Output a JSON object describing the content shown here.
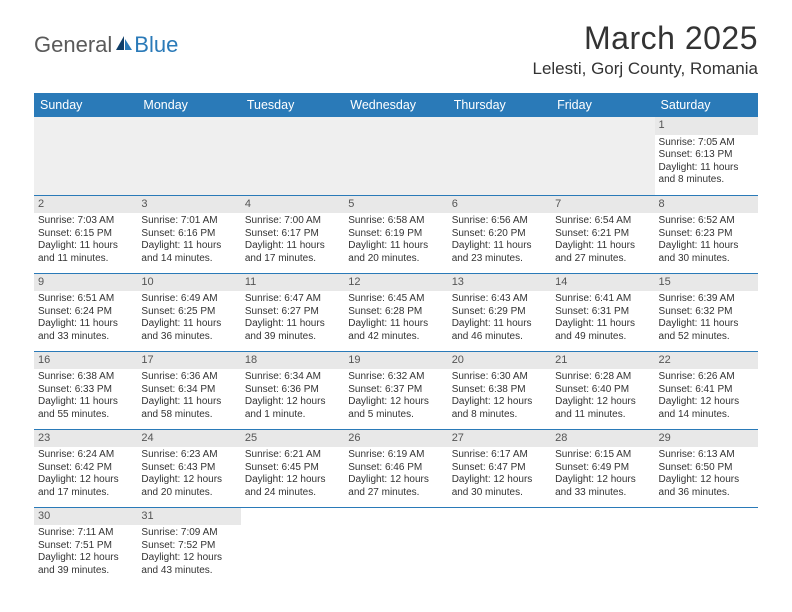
{
  "logo": {
    "general": "General",
    "blue": "Blue"
  },
  "title": "March 2025",
  "location": "Lelesti, Gorj County, Romania",
  "header_color": "#2a7ab8",
  "day_bg": "#e8e8e8",
  "weekdays": [
    "Sunday",
    "Monday",
    "Tuesday",
    "Wednesday",
    "Thursday",
    "Friday",
    "Saturday"
  ],
  "weeks": [
    [
      null,
      null,
      null,
      null,
      null,
      null,
      {
        "n": "1",
        "sr": "Sunrise: 7:05 AM",
        "ss": "Sunset: 6:13 PM",
        "dl": "Daylight: 11 hours and 8 minutes."
      }
    ],
    [
      {
        "n": "2",
        "sr": "Sunrise: 7:03 AM",
        "ss": "Sunset: 6:15 PM",
        "dl": "Daylight: 11 hours and 11 minutes."
      },
      {
        "n": "3",
        "sr": "Sunrise: 7:01 AM",
        "ss": "Sunset: 6:16 PM",
        "dl": "Daylight: 11 hours and 14 minutes."
      },
      {
        "n": "4",
        "sr": "Sunrise: 7:00 AM",
        "ss": "Sunset: 6:17 PM",
        "dl": "Daylight: 11 hours and 17 minutes."
      },
      {
        "n": "5",
        "sr": "Sunrise: 6:58 AM",
        "ss": "Sunset: 6:19 PM",
        "dl": "Daylight: 11 hours and 20 minutes."
      },
      {
        "n": "6",
        "sr": "Sunrise: 6:56 AM",
        "ss": "Sunset: 6:20 PM",
        "dl": "Daylight: 11 hours and 23 minutes."
      },
      {
        "n": "7",
        "sr": "Sunrise: 6:54 AM",
        "ss": "Sunset: 6:21 PM",
        "dl": "Daylight: 11 hours and 27 minutes."
      },
      {
        "n": "8",
        "sr": "Sunrise: 6:52 AM",
        "ss": "Sunset: 6:23 PM",
        "dl": "Daylight: 11 hours and 30 minutes."
      }
    ],
    [
      {
        "n": "9",
        "sr": "Sunrise: 6:51 AM",
        "ss": "Sunset: 6:24 PM",
        "dl": "Daylight: 11 hours and 33 minutes."
      },
      {
        "n": "10",
        "sr": "Sunrise: 6:49 AM",
        "ss": "Sunset: 6:25 PM",
        "dl": "Daylight: 11 hours and 36 minutes."
      },
      {
        "n": "11",
        "sr": "Sunrise: 6:47 AM",
        "ss": "Sunset: 6:27 PM",
        "dl": "Daylight: 11 hours and 39 minutes."
      },
      {
        "n": "12",
        "sr": "Sunrise: 6:45 AM",
        "ss": "Sunset: 6:28 PM",
        "dl": "Daylight: 11 hours and 42 minutes."
      },
      {
        "n": "13",
        "sr": "Sunrise: 6:43 AM",
        "ss": "Sunset: 6:29 PM",
        "dl": "Daylight: 11 hours and 46 minutes."
      },
      {
        "n": "14",
        "sr": "Sunrise: 6:41 AM",
        "ss": "Sunset: 6:31 PM",
        "dl": "Daylight: 11 hours and 49 minutes."
      },
      {
        "n": "15",
        "sr": "Sunrise: 6:39 AM",
        "ss": "Sunset: 6:32 PM",
        "dl": "Daylight: 11 hours and 52 minutes."
      }
    ],
    [
      {
        "n": "16",
        "sr": "Sunrise: 6:38 AM",
        "ss": "Sunset: 6:33 PM",
        "dl": "Daylight: 11 hours and 55 minutes."
      },
      {
        "n": "17",
        "sr": "Sunrise: 6:36 AM",
        "ss": "Sunset: 6:34 PM",
        "dl": "Daylight: 11 hours and 58 minutes."
      },
      {
        "n": "18",
        "sr": "Sunrise: 6:34 AM",
        "ss": "Sunset: 6:36 PM",
        "dl": "Daylight: 12 hours and 1 minute."
      },
      {
        "n": "19",
        "sr": "Sunrise: 6:32 AM",
        "ss": "Sunset: 6:37 PM",
        "dl": "Daylight: 12 hours and 5 minutes."
      },
      {
        "n": "20",
        "sr": "Sunrise: 6:30 AM",
        "ss": "Sunset: 6:38 PM",
        "dl": "Daylight: 12 hours and 8 minutes."
      },
      {
        "n": "21",
        "sr": "Sunrise: 6:28 AM",
        "ss": "Sunset: 6:40 PM",
        "dl": "Daylight: 12 hours and 11 minutes."
      },
      {
        "n": "22",
        "sr": "Sunrise: 6:26 AM",
        "ss": "Sunset: 6:41 PM",
        "dl": "Daylight: 12 hours and 14 minutes."
      }
    ],
    [
      {
        "n": "23",
        "sr": "Sunrise: 6:24 AM",
        "ss": "Sunset: 6:42 PM",
        "dl": "Daylight: 12 hours and 17 minutes."
      },
      {
        "n": "24",
        "sr": "Sunrise: 6:23 AM",
        "ss": "Sunset: 6:43 PM",
        "dl": "Daylight: 12 hours and 20 minutes."
      },
      {
        "n": "25",
        "sr": "Sunrise: 6:21 AM",
        "ss": "Sunset: 6:45 PM",
        "dl": "Daylight: 12 hours and 24 minutes."
      },
      {
        "n": "26",
        "sr": "Sunrise: 6:19 AM",
        "ss": "Sunset: 6:46 PM",
        "dl": "Daylight: 12 hours and 27 minutes."
      },
      {
        "n": "27",
        "sr": "Sunrise: 6:17 AM",
        "ss": "Sunset: 6:47 PM",
        "dl": "Daylight: 12 hours and 30 minutes."
      },
      {
        "n": "28",
        "sr": "Sunrise: 6:15 AM",
        "ss": "Sunset: 6:49 PM",
        "dl": "Daylight: 12 hours and 33 minutes."
      },
      {
        "n": "29",
        "sr": "Sunrise: 6:13 AM",
        "ss": "Sunset: 6:50 PM",
        "dl": "Daylight: 12 hours and 36 minutes."
      }
    ],
    [
      {
        "n": "30",
        "sr": "Sunrise: 7:11 AM",
        "ss": "Sunset: 7:51 PM",
        "dl": "Daylight: 12 hours and 39 minutes."
      },
      {
        "n": "31",
        "sr": "Sunrise: 7:09 AM",
        "ss": "Sunset: 7:52 PM",
        "dl": "Daylight: 12 hours and 43 minutes."
      },
      null,
      null,
      null,
      null,
      null
    ]
  ]
}
